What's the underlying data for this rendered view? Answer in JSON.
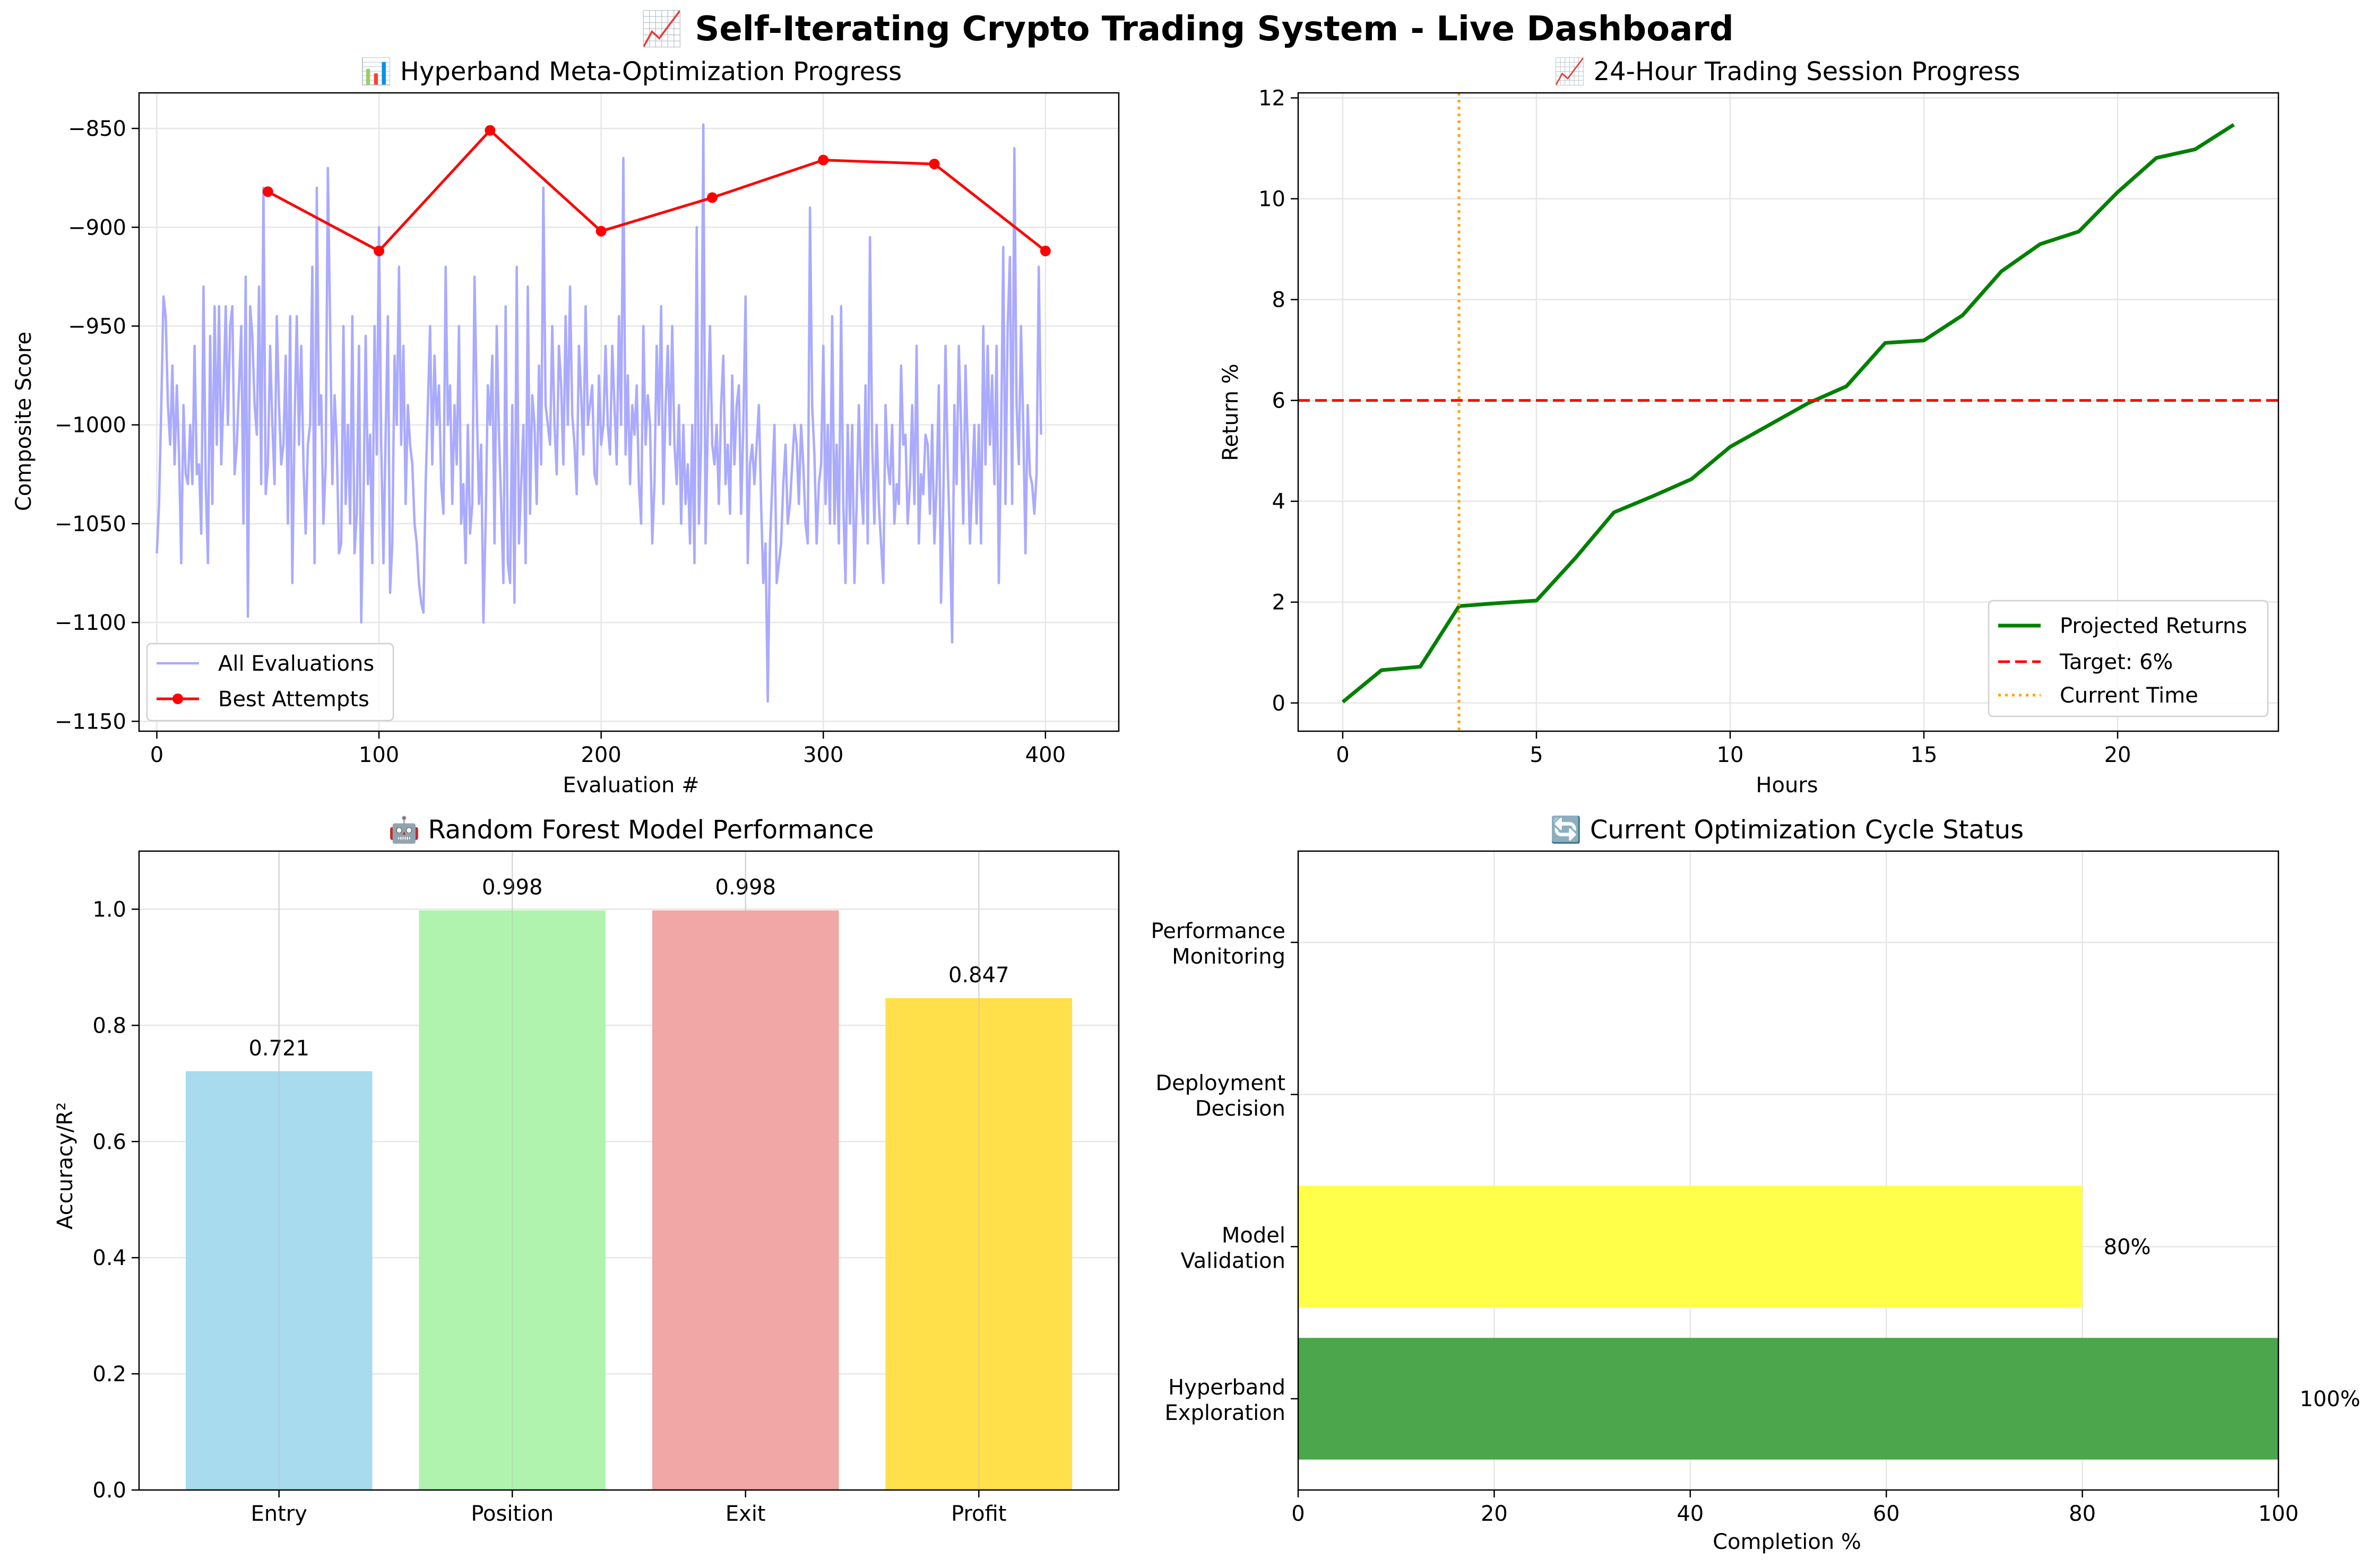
{
  "suptitle": "📈 Self-Iterating Crypto Trading System - Live Dashboard",
  "colors": {
    "all_evals": "#aaaaff",
    "best": "#ff0000",
    "returns": "#008000",
    "target": "#ff0000",
    "current_time": "#ffa500",
    "grid": "#e6e6e6"
  },
  "chart_data": [
    {
      "type": "line",
      "title": "📊 Hyperband Meta-Optimization Progress",
      "xlabel": "Evaluation #",
      "ylabel": "Composite Score",
      "xlim": [
        -8,
        433
      ],
      "ylim": [
        -1155,
        -832
      ],
      "xticks": [
        0,
        100,
        200,
        300,
        400
      ],
      "yticks": [
        -850,
        -900,
        -950,
        -1000,
        -1050,
        -1100,
        -1150
      ],
      "tick_labels_x": [
        "0",
        "100",
        "200",
        "300",
        "400"
      ],
      "tick_labels_y": [
        "−850",
        "−900",
        "−950",
        "−1000",
        "−1050",
        "−1100",
        "−1150"
      ],
      "grid": true,
      "legend_position": "lower-left",
      "series": [
        {
          "name": "All Evaluations",
          "x_start": 0,
          "x_step": 1,
          "values": [
            -1065,
            -1040,
            -990,
            -935,
            -945,
            -990,
            -1010,
            -970,
            -1020,
            -980,
            -1015,
            -1070,
            -990,
            -1025,
            -1030,
            -1000,
            -1030,
            -960,
            -1025,
            -1020,
            -1055,
            -930,
            -1030,
            -1070,
            -955,
            -1040,
            -940,
            -1010,
            -940,
            -1020,
            -985,
            -940,
            -1000,
            -950,
            -940,
            -1025,
            -1010,
            -980,
            -950,
            -1050,
            -925,
            -1097,
            -940,
            -955,
            -990,
            -1005,
            -930,
            -1030,
            -880,
            -1035,
            -1020,
            -960,
            -1000,
            -1030,
            -945,
            -990,
            -1020,
            -1010,
            -965,
            -1050,
            -945,
            -1080,
            -1000,
            -945,
            -1010,
            -960,
            -1020,
            -1055,
            -1010,
            -1000,
            -920,
            -1070,
            -880,
            -1000,
            -985,
            -1050,
            -1020,
            -870,
            -950,
            -1030,
            -985,
            -1010,
            -1065,
            -1060,
            -950,
            -1040,
            -1000,
            -1050,
            -945,
            -1065,
            -1045,
            -960,
            -1100,
            -1040,
            -955,
            -1030,
            -1005,
            -1070,
            -950,
            -1015,
            -900,
            -1010,
            -1070,
            -1005,
            -945,
            -1085,
            -1060,
            -965,
            -1000,
            -920,
            -1010,
            -960,
            -1040,
            -990,
            -1010,
            -1020,
            -1050,
            -1060,
            -1080,
            -1090,
            -1095,
            -1030,
            -990,
            -950,
            -1020,
            -965,
            -1000,
            -980,
            -1030,
            -1045,
            -920,
            -1000,
            -980,
            -1040,
            -990,
            -1020,
            -950,
            -1050,
            -1030,
            -1070,
            -1000,
            -1055,
            -1040,
            -925,
            -990,
            -1040,
            -1010,
            -1100,
            -1050,
            -980,
            -1000,
            -965,
            -1060,
            -950,
            -1005,
            -1040,
            -1080,
            -940,
            -1070,
            -1080,
            -990,
            -1090,
            -920,
            -1060,
            -1030,
            -1000,
            -1070,
            -930,
            -1045,
            -985,
            -1000,
            -1040,
            -970,
            -1020,
            -880,
            -990,
            -1000,
            -1010,
            -950,
            -1000,
            -1025,
            -960,
            -980,
            -1020,
            -945,
            -1000,
            -930,
            -995,
            -1010,
            -1035,
            -960,
            -985,
            -1015,
            -940,
            -1000,
            -990,
            -980,
            -1025,
            -1030,
            -975,
            -1010,
            -1000,
            -960,
            -1000,
            -1015,
            -960,
            -990,
            -1020,
            -945,
            -1000,
            -865,
            -1015,
            -975,
            -1030,
            -990,
            -1005,
            -980,
            -1030,
            -1050,
            -950,
            -1010,
            -985,
            -1000,
            -1060,
            -1030,
            -960,
            -1000,
            -940,
            -1040,
            -990,
            -960,
            -1010,
            -950,
            -1010,
            -1030,
            -990,
            -1050,
            -1000,
            -1040,
            -1020,
            -1060,
            -1000,
            -1070,
            -900,
            -1050,
            -1010,
            -848,
            -1060,
            -1000,
            -950,
            -1010,
            -1020,
            -1000,
            -1040,
            -990,
            -965,
            -1030,
            -1010,
            -1045,
            -975,
            -1020,
            -990,
            -980,
            -1045,
            -1000,
            -935,
            -1070,
            -1020,
            -1010,
            -1030,
            -1010,
            -990,
            -1040,
            -1080,
            -1060,
            -1140,
            -1060,
            -1030,
            -1000,
            -1080,
            -1070,
            -1060,
            -1030,
            -1010,
            -1050,
            -1040,
            -1020,
            -1000,
            -1010,
            -1040,
            -1000,
            -1020,
            -1050,
            -1060,
            -890,
            -990,
            -1015,
            -1060,
            -1030,
            -1020,
            -960,
            -1040,
            -1000,
            -1050,
            -945,
            -1050,
            -1010,
            -1060,
            -940,
            -1040,
            -1080,
            -1000,
            -1050,
            -1000,
            -1080,
            -1040,
            -990,
            -1030,
            -1050,
            -980,
            -1060,
            -905,
            -1010,
            -1050,
            -1000,
            -1040,
            -1060,
            -1080,
            -990,
            -1020,
            -1030,
            -1000,
            -1050,
            -1030,
            -1040,
            -970,
            -1010,
            -1005,
            -1050,
            -1030,
            -990,
            -1040,
            -960,
            -1060,
            -1025,
            -1035,
            -1005,
            -1010,
            -1045,
            -1000,
            -1060,
            -1030,
            -980,
            -1090,
            -1040,
            -960,
            -1020,
            -1060,
            -1110,
            -990,
            -1030,
            -960,
            -1000,
            -1050,
            -970,
            -1010,
            -1060,
            -1030,
            -1000,
            -1050,
            -1000,
            -1060,
            -950,
            -1020,
            -960,
            -1010,
            -975,
            -1030,
            -960,
            -1080,
            -1010,
            -910,
            -1040,
            -950,
            -915,
            -1040,
            -860,
            -990,
            -1020,
            -950,
            -1000,
            -1065,
            -990,
            -1025,
            -1030,
            -1045,
            -1025,
            -920,
            -1005
          ]
        },
        {
          "name": "Best Attempts",
          "x": [
            50,
            100,
            150,
            200,
            250,
            300,
            350,
            400
          ],
          "values": [
            -882,
            -912,
            -851,
            -902,
            -885,
            -866,
            -868,
            -912
          ]
        }
      ]
    },
    {
      "type": "line",
      "title": "📈 24-Hour Trading Session Progress",
      "xlabel": "Hours",
      "ylabel": "Return %",
      "xlim": [
        -1.15,
        24.15
      ],
      "ylim": [
        -0.56,
        12.1
      ],
      "xticks": [
        0,
        5,
        10,
        15,
        20
      ],
      "yticks": [
        0,
        2,
        4,
        6,
        8,
        10,
        12
      ],
      "tick_labels_x": [
        "0",
        "5",
        "10",
        "15",
        "20"
      ],
      "tick_labels_y": [
        "0",
        "2",
        "4",
        "6",
        "8",
        "10",
        "12"
      ],
      "grid": true,
      "legend_position": "lower-right",
      "series": [
        {
          "name": "Projected Returns",
          "x": [
            0,
            1,
            2,
            3,
            4,
            5,
            6,
            7,
            8,
            9,
            10,
            11,
            12,
            13,
            14,
            15,
            16,
            17,
            18,
            19,
            20,
            21,
            22,
            23
          ],
          "values": [
            0.02,
            0.65,
            0.72,
            1.92,
            1.98,
            2.03,
            2.87,
            3.78,
            4.1,
            4.44,
            5.08,
            5.51,
            5.94,
            6.28,
            7.14,
            7.19,
            7.69,
            8.56,
            9.1,
            9.35,
            10.13,
            10.81,
            10.98,
            11.47
          ]
        },
        {
          "name": "Target: 6%",
          "hline": 6
        },
        {
          "name": "Current Time",
          "vline": 3
        }
      ]
    },
    {
      "type": "bar",
      "title": "🤖 Random Forest Model Performance",
      "xlabel": "",
      "ylabel": "Accuracy/R²",
      "categories": [
        "Entry",
        "Position",
        "Exit",
        "Profit"
      ],
      "values": [
        0.721,
        0.998,
        0.998,
        0.847
      ],
      "data_labels": [
        "0.721",
        "0.998",
        "0.998",
        "0.847"
      ],
      "colors": [
        "#a8dbee",
        "#b0f3ae",
        "#f2a7a7",
        "#ffe04a"
      ],
      "ylim": [
        0,
        1.1
      ],
      "yticks": [
        0.0,
        0.2,
        0.4,
        0.6,
        0.8,
        1.0
      ],
      "tick_labels_y": [
        "0.0",
        "0.2",
        "0.4",
        "0.6",
        "0.8",
        "1.0"
      ],
      "grid": true
    },
    {
      "type": "bar",
      "orientation": "horizontal",
      "title": "🔄 Current Optimization Cycle Status",
      "xlabel": "Completion %",
      "categories": [
        [
          "Hyperband",
          "Exploration"
        ],
        [
          "Model",
          "Validation"
        ],
        [
          "Deployment",
          "Decision"
        ],
        [
          "Performance",
          "Monitoring"
        ]
      ],
      "values": [
        100,
        80,
        0,
        0
      ],
      "data_labels": [
        "100%",
        "80%",
        "",
        ""
      ],
      "colors": [
        "#4ca64c",
        "#ffff4a",
        "#cccccc",
        "#cccccc"
      ],
      "xlim": [
        0,
        100
      ],
      "xticks": [
        0,
        20,
        40,
        60,
        80,
        100
      ],
      "tick_labels_x": [
        "0",
        "20",
        "40",
        "60",
        "80",
        "100"
      ],
      "grid": true
    }
  ]
}
